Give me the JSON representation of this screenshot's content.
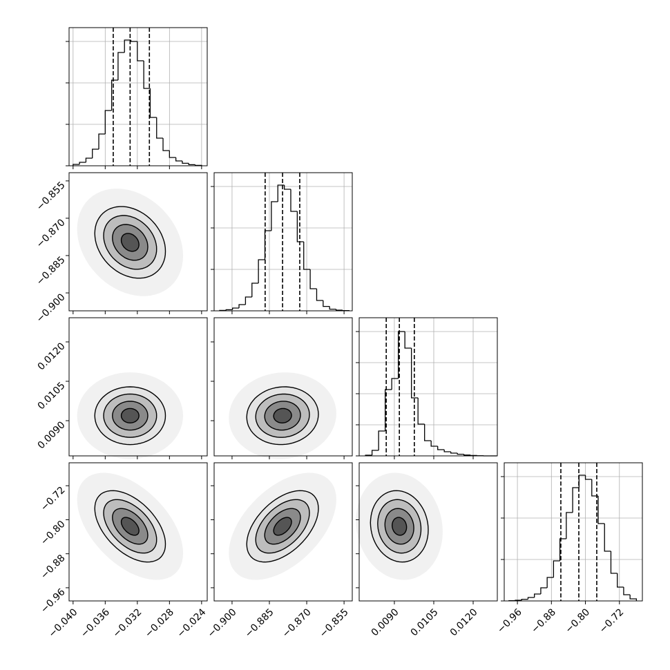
{
  "chart_data": {
    "type": "corner",
    "parameters": [
      {
        "xlim": [
          -0.0405,
          -0.0233
        ],
        "xticks": [
          {
            "value": -0.04,
            "label": "−0.040"
          },
          {
            "value": -0.036,
            "label": "−0.036"
          },
          {
            "value": -0.032,
            "label": "−0.032"
          },
          {
            "value": -0.028,
            "label": "−0.028"
          },
          {
            "value": -0.024,
            "label": "−0.024"
          }
        ],
        "bins": [
          -0.04,
          -0.0392,
          -0.0384,
          -0.0376,
          -0.0368,
          -0.036,
          -0.0352,
          -0.0344,
          -0.0336,
          -0.0328,
          -0.032,
          -0.0312,
          -0.0304,
          -0.0296,
          -0.0288,
          -0.028,
          -0.0272,
          -0.0264,
          -0.0256,
          -0.0248,
          -0.024
        ],
        "counts": [
          10,
          25,
          55,
          120,
          230,
          400,
          620,
          820,
          910,
          900,
          760,
          560,
          350,
          200,
          110,
          60,
          35,
          18,
          8,
          3
        ],
        "quantiles": [
          -0.035,
          -0.0329,
          -0.0305
        ],
        "ylim": [
          0,
          1000
        ],
        "yticks": [
          0,
          300,
          600,
          900
        ],
        "grid": true
      },
      {
        "xlim": [
          -0.9072,
          -0.8517
        ],
        "xticks": [
          {
            "value": -0.9,
            "label": "−0.900"
          },
          {
            "value": -0.885,
            "label": "−0.885"
          },
          {
            "value": -0.87,
            "label": "−0.870"
          },
          {
            "value": -0.855,
            "label": "−0.855"
          }
        ],
        "bins": [
          -0.905,
          -0.9024,
          -0.8998,
          -0.8972,
          -0.8946,
          -0.892,
          -0.8894,
          -0.8868,
          -0.8842,
          -0.8816,
          -0.879,
          -0.8764,
          -0.8738,
          -0.8712,
          -0.8686,
          -0.866,
          -0.8634,
          -0.8608,
          -0.8582,
          -0.8556,
          -0.853
        ],
        "counts": [
          3,
          8,
          20,
          45,
          100,
          200,
          370,
          580,
          790,
          910,
          880,
          720,
          500,
          300,
          160,
          75,
          32,
          12,
          5,
          2
        ],
        "quantiles": [
          -0.8867,
          -0.8797,
          -0.8728
        ],
        "ylim": [
          0,
          1000
        ],
        "yticks": [
          0,
          300,
          600,
          900
        ],
        "grid": true
      },
      {
        "xlim": [
          0.00766,
          0.01292
        ],
        "xticks": [
          {
            "value": 0.009,
            "label": "0.0090"
          },
          {
            "value": 0.0105,
            "label": "0.0105"
          },
          {
            "value": 0.012,
            "label": "0.0120"
          }
        ],
        "bins": [
          0.0079,
          0.00815,
          0.0084,
          0.00865,
          0.0089,
          0.00915,
          0.0094,
          0.00965,
          0.0099,
          0.01015,
          0.0104,
          0.01065,
          0.0109,
          0.01115,
          0.0114,
          0.01165,
          0.0119,
          0.01215,
          0.0124,
          0.01265,
          0.0129
        ],
        "counts": [
          5,
          40,
          180,
          480,
          560,
          900,
          780,
          420,
          230,
          110,
          70,
          45,
          30,
          20,
          12,
          6,
          3,
          1,
          0,
          0
        ],
        "quantiles": [
          0.00869,
          0.00919,
          0.00976
        ],
        "ylim": [
          0,
          1000
        ],
        "yticks": [
          0,
          225,
          450,
          675,
          900
        ],
        "grid": true
      },
      {
        "xlim": [
          -0.991,
          -0.666
        ],
        "xticks": [
          {
            "value": -0.96,
            "label": "−0.96"
          },
          {
            "value": -0.88,
            "label": "−0.88"
          },
          {
            "value": -0.8,
            "label": "−0.80"
          },
          {
            "value": -0.72,
            "label": "−0.72"
          }
        ],
        "bins": [
          -0.98,
          -0.965,
          -0.95,
          -0.935,
          -0.92,
          -0.905,
          -0.89,
          -0.875,
          -0.86,
          -0.845,
          -0.83,
          -0.815,
          -0.8,
          -0.785,
          -0.77,
          -0.755,
          -0.74,
          -0.725,
          -0.71,
          -0.695,
          -0.68
        ],
        "counts": [
          2,
          5,
          12,
          25,
          50,
          95,
          170,
          290,
          450,
          640,
          820,
          910,
          880,
          760,
          560,
          360,
          200,
          100,
          45,
          15
        ],
        "quantiles": [
          -0.8578,
          -0.8155,
          -0.7733
        ],
        "ylim": [
          0,
          1000
        ],
        "yticks": [
          0,
          300,
          600,
          900
        ],
        "grid": true
      }
    ],
    "pairs": [
      {
        "row": 1,
        "col": 0,
        "center": [
          -0.0329,
          -0.8797
        ],
        "rho": -0.25,
        "contours": [
          {
            "sx": 0.0011,
            "sy": 0.0036
          },
          {
            "sx": 0.0022,
            "sy": 0.0072
          },
          {
            "sx": 0.0033,
            "sy": 0.0108
          },
          {
            "sx": 0.0044,
            "sy": 0.0144
          }
        ]
      },
      {
        "row": 2,
        "col": 0,
        "center": [
          -0.0329,
          0.00919
        ],
        "rho": 0.0,
        "contours": [
          {
            "sx": 0.0011,
            "sy": 0.000275
          },
          {
            "sx": 0.0022,
            "sy": 0.00055
          },
          {
            "sx": 0.0033,
            "sy": 0.000825
          },
          {
            "sx": 0.0044,
            "sy": 0.0011
          }
        ]
      },
      {
        "row": 2,
        "col": 1,
        "center": [
          -0.8797,
          0.00919
        ],
        "rho": 0.05,
        "contours": [
          {
            "sx": 0.0036,
            "sy": 0.000275
          },
          {
            "sx": 0.0072,
            "sy": 0.00055
          },
          {
            "sx": 0.0108,
            "sy": 0.000825
          },
          {
            "sx": 0.0144,
            "sy": 0.0011
          }
        ]
      },
      {
        "row": 3,
        "col": 0,
        "center": [
          -0.0329,
          -0.8155
        ],
        "rho": -0.5,
        "contours": [
          {
            "sx": 0.0011,
            "sy": 0.021
          },
          {
            "sx": 0.0022,
            "sy": 0.042
          },
          {
            "sx": 0.0033,
            "sy": 0.063
          },
          {
            "sx": 0.0044,
            "sy": 0.084
          }
        ]
      },
      {
        "row": 3,
        "col": 1,
        "center": [
          -0.8797,
          -0.8155
        ],
        "rho": 0.5,
        "contours": [
          {
            "sx": 0.0036,
            "sy": 0.021
          },
          {
            "sx": 0.0072,
            "sy": 0.042
          },
          {
            "sx": 0.0108,
            "sy": 0.063
          },
          {
            "sx": 0.0144,
            "sy": 0.084
          }
        ]
      },
      {
        "row": 3,
        "col": 2,
        "center": [
          0.00919,
          -0.8155
        ],
        "rho": -0.1,
        "contours": [
          {
            "sx": 0.000275,
            "sy": 0.021
          },
          {
            "sx": 0.00055,
            "sy": 0.042
          },
          {
            "sx": 0.000825,
            "sy": 0.063
          },
          {
            "sx": 0.0011,
            "sy": 0.084
          }
        ]
      }
    ]
  }
}
